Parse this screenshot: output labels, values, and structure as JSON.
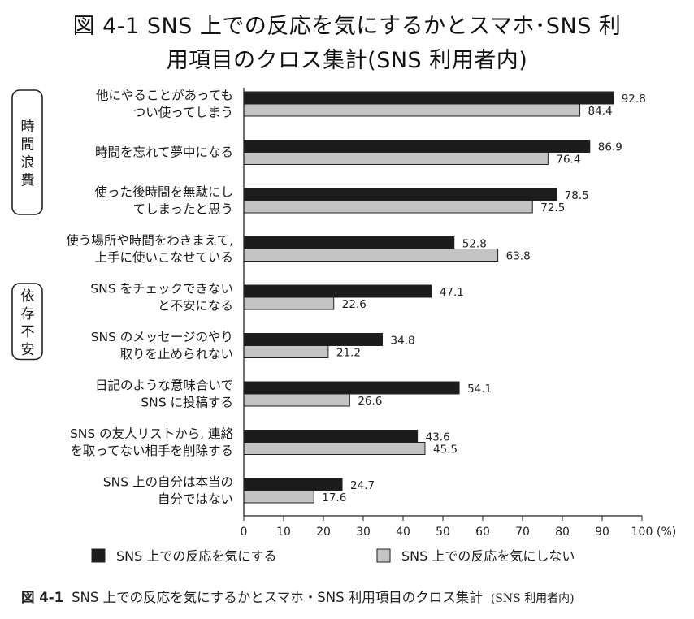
{
  "title_lines": [
    "図 4-1 SNS 上での反応を気にするかとスマホ･SNS 利",
    "用項目のクロス集計(SNS 利用者内)"
  ],
  "caption": {
    "number": "図 4-1",
    "text": "SNS 上での反応を気にするかとスマホ・SNS 利用項目のクロス集計",
    "sub": "(SNS 利用者内)"
  },
  "groups": [
    {
      "label_chars": [
        "時",
        "間",
        "浪",
        "費"
      ],
      "first_item": 0,
      "last_item": 2
    },
    {
      "label_chars": [
        "依",
        "存",
        "不",
        "安"
      ],
      "first_item": 4,
      "last_item": 5
    }
  ],
  "chart_data": {
    "type": "bar",
    "orientation": "horizontal",
    "categories": [
      [
        "他にやることがあっても",
        "つい使ってしまう"
      ],
      [
        "時間を忘れて夢中になる"
      ],
      [
        "使った後時間を無駄にし",
        "てしまったと思う"
      ],
      [
        "使う場所や時間をわきまえて,",
        "上手に使いこなせている"
      ],
      [
        "SNS をチェックできない",
        "と不安になる"
      ],
      [
        "SNS のメッセージのやり",
        "取りを止められない"
      ],
      [
        "日記のような意味合いで",
        "SNS に投稿する"
      ],
      [
        "SNS の友人リストから, 連絡",
        "を取ってない相手を削除する"
      ],
      [
        "SNS 上の自分は本当の",
        "自分ではない"
      ]
    ],
    "series": [
      {
        "name": "SNS 上での反応を気にする",
        "color": "#1c1c1c",
        "values": [
          92.8,
          86.9,
          78.5,
          52.8,
          47.1,
          34.8,
          54.1,
          43.6,
          24.7
        ],
        "labels": [
          "92.8",
          "86.9",
          "78.5",
          "52.8",
          "47.1",
          "34.8",
          "54.1",
          "43.6",
          "24.7"
        ]
      },
      {
        "name": "SNS 上での反応を気にしない",
        "color": "#c4c4c4",
        "values": [
          84.4,
          76.4,
          72.5,
          63.8,
          22.6,
          21.2,
          26.6,
          45.5,
          17.6
        ],
        "labels": [
          "84.4",
          "76.4",
          "72.5",
          "63.8",
          "22.6",
          "21.2",
          "26.6",
          "45.5",
          "17.6"
        ]
      }
    ],
    "xlim": [
      0,
      100
    ],
    "xticks": [
      "0",
      "10",
      "20",
      "30",
      "40",
      "50",
      "60",
      "70",
      "80",
      "90",
      "100"
    ],
    "xunit": "(%)",
    "grid": false,
    "legend_position": "bottom"
  }
}
